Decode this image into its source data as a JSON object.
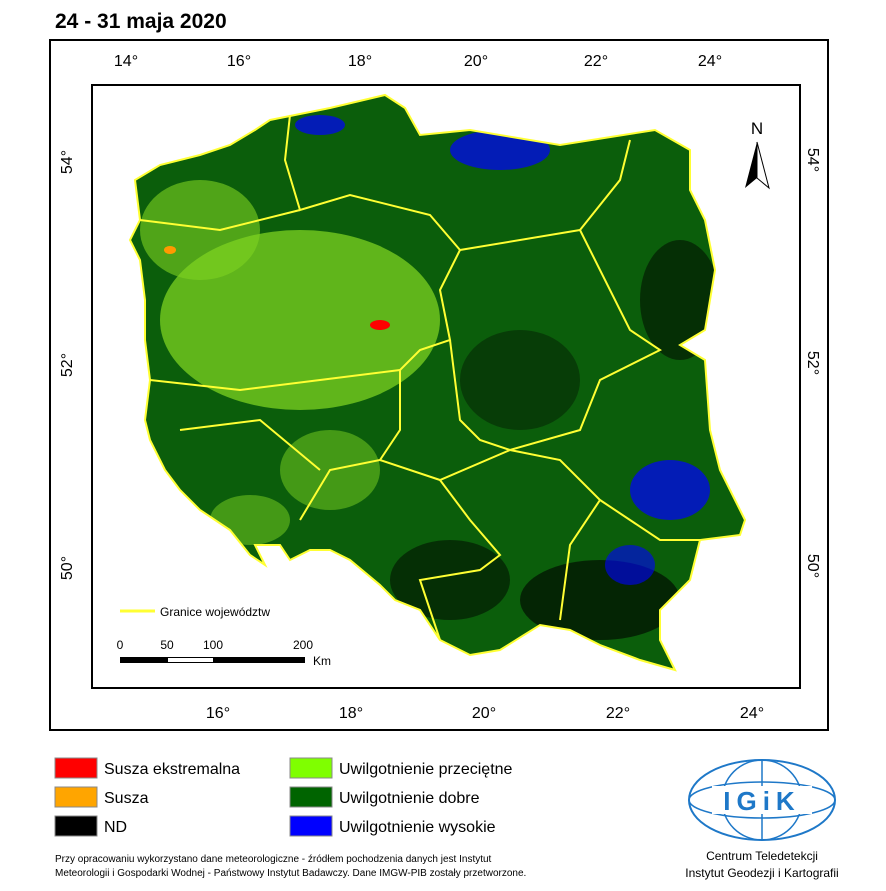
{
  "title": "24 - 31 maja 2020",
  "axes": {
    "top": [
      "14°",
      "16°",
      "18°",
      "20°",
      "22°",
      "24°"
    ],
    "bottom": [
      "16°",
      "18°",
      "20°",
      "22°",
      "24°"
    ],
    "left": [
      "54°",
      "52°",
      "50°"
    ],
    "right": [
      "54°",
      "52°",
      "50°"
    ]
  },
  "north": "N",
  "border_legend": "Granice województw",
  "scale": {
    "labels": [
      "0",
      "50",
      "100",
      "200"
    ],
    "unit": "Km"
  },
  "legend": [
    "Susza ekstremalna",
    "Susza",
    "ND",
    "Uwilgotnienie przeciętne",
    "Uwilgotnienie dobre",
    "Uwilgotnienie wysokie"
  ],
  "footnote": [
    "Przy opracowaniu wykorzystano dane meteorologiczne - źródłem pochodzenia danych jest Instytut",
    "Meteorologii i Gospodarki Wodnej - Państwowy Instytut Badawczy. Dane IMGW-PIB zostały przetworzone."
  ],
  "institution": [
    "Centrum Teledetekcji",
    "Instytut Geodezji i Kartografii"
  ],
  "logo": "IGiK"
}
